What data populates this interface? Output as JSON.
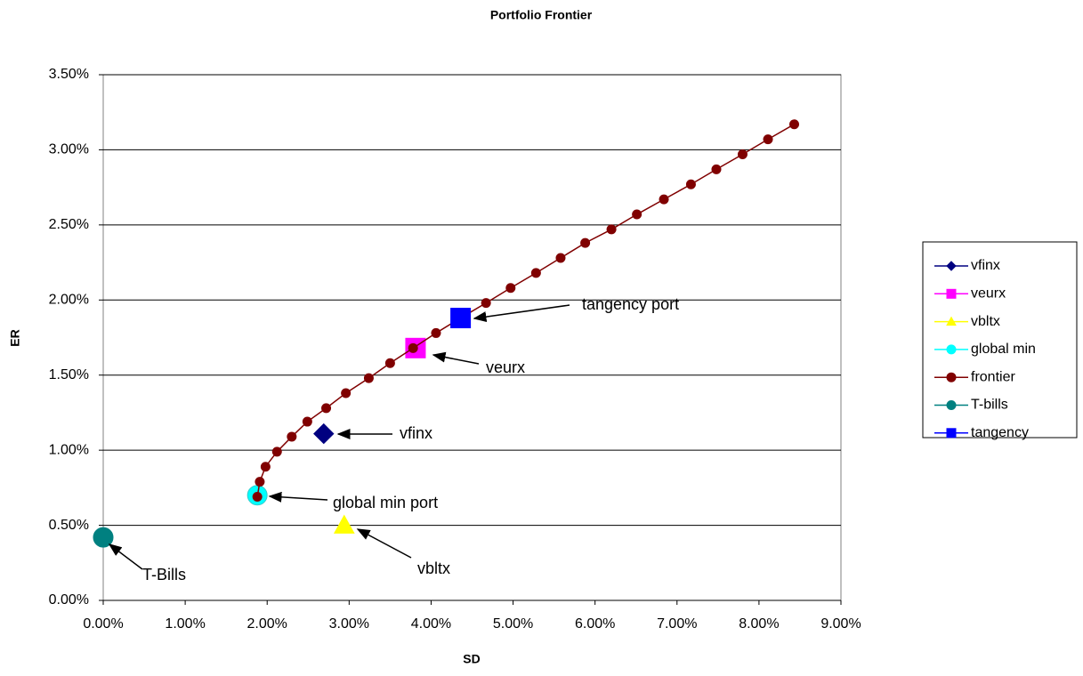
{
  "chart_data": {
    "type": "scatter",
    "title": "Portfolio Frontier",
    "x_label": "SD",
    "y_label": "ER",
    "xlim": [
      0,
      9
    ],
    "ylim": [
      0,
      3.5
    ],
    "xticks": [
      {
        "value": 0,
        "label": "0.00%"
      },
      {
        "value": 1,
        "label": "1.00%"
      },
      {
        "value": 2,
        "label": "2.00%"
      },
      {
        "value": 3,
        "label": "3.00%"
      },
      {
        "value": 4,
        "label": "4.00%"
      },
      {
        "value": 5,
        "label": "5.00%"
      },
      {
        "value": 6,
        "label": "6.00%"
      },
      {
        "value": 7,
        "label": "7.00%"
      },
      {
        "value": 8,
        "label": "8.00%"
      },
      {
        "value": 9,
        "label": "9.00%"
      }
    ],
    "yticks": [
      {
        "value": 0,
        "label": "0.00%"
      },
      {
        "value": 0.5,
        "label": "0.50%"
      },
      {
        "value": 1,
        "label": "1.00%"
      },
      {
        "value": 1.5,
        "label": "1.50%"
      },
      {
        "value": 2,
        "label": "2.00%"
      },
      {
        "value": 2.5,
        "label": "2.50%"
      },
      {
        "value": 3,
        "label": "3.00%"
      },
      {
        "value": 3.5,
        "label": "3.50%"
      }
    ],
    "grid": "horizontal",
    "legend": "right",
    "series": [
      {
        "name": "vfinx",
        "color": "#000080",
        "marker": "diamond",
        "x": [
          2.69
        ],
        "values": [
          1.11
        ]
      },
      {
        "name": "veurx",
        "color": "#ff00ff",
        "marker": "square",
        "x": [
          3.81
        ],
        "values": [
          1.68
        ]
      },
      {
        "name": "vbltx",
        "color": "#ffff00",
        "marker": "triangle",
        "x": [
          2.94
        ],
        "values": [
          0.5
        ]
      },
      {
        "name": "global min",
        "color": "#00ffff",
        "marker": "circle",
        "x": [
          1.88
        ],
        "values": [
          0.7
        ]
      },
      {
        "name": "frontier",
        "color": "#800000",
        "marker": "circle",
        "line": true,
        "x": [
          1.88,
          1.91,
          1.98,
          2.12,
          2.3,
          2.49,
          2.72,
          2.96,
          3.24,
          3.5,
          3.78,
          4.06,
          4.36,
          4.67,
          4.97,
          5.28,
          5.58,
          5.88,
          6.2,
          6.51,
          6.84,
          7.17,
          7.48,
          7.8,
          8.11,
          8.43
        ],
        "values": [
          0.69,
          0.79,
          0.89,
          0.99,
          1.09,
          1.19,
          1.28,
          1.38,
          1.48,
          1.58,
          1.68,
          1.78,
          1.88,
          1.98,
          2.08,
          2.18,
          2.28,
          2.38,
          2.47,
          2.57,
          2.67,
          2.77,
          2.87,
          2.97,
          3.07,
          3.17
        ]
      },
      {
        "name": "T-bills",
        "color": "#008080",
        "marker": "circle",
        "x": [
          0
        ],
        "values": [
          0.42
        ]
      },
      {
        "name": "tangency",
        "color": "#0000ff",
        "marker": "square",
        "x": [
          4.36
        ],
        "values": [
          1.88
        ]
      }
    ],
    "annotations": [
      "tangency port",
      "veurx",
      "vfinx",
      "global min port",
      "vbltx",
      "T-Bills"
    ]
  }
}
